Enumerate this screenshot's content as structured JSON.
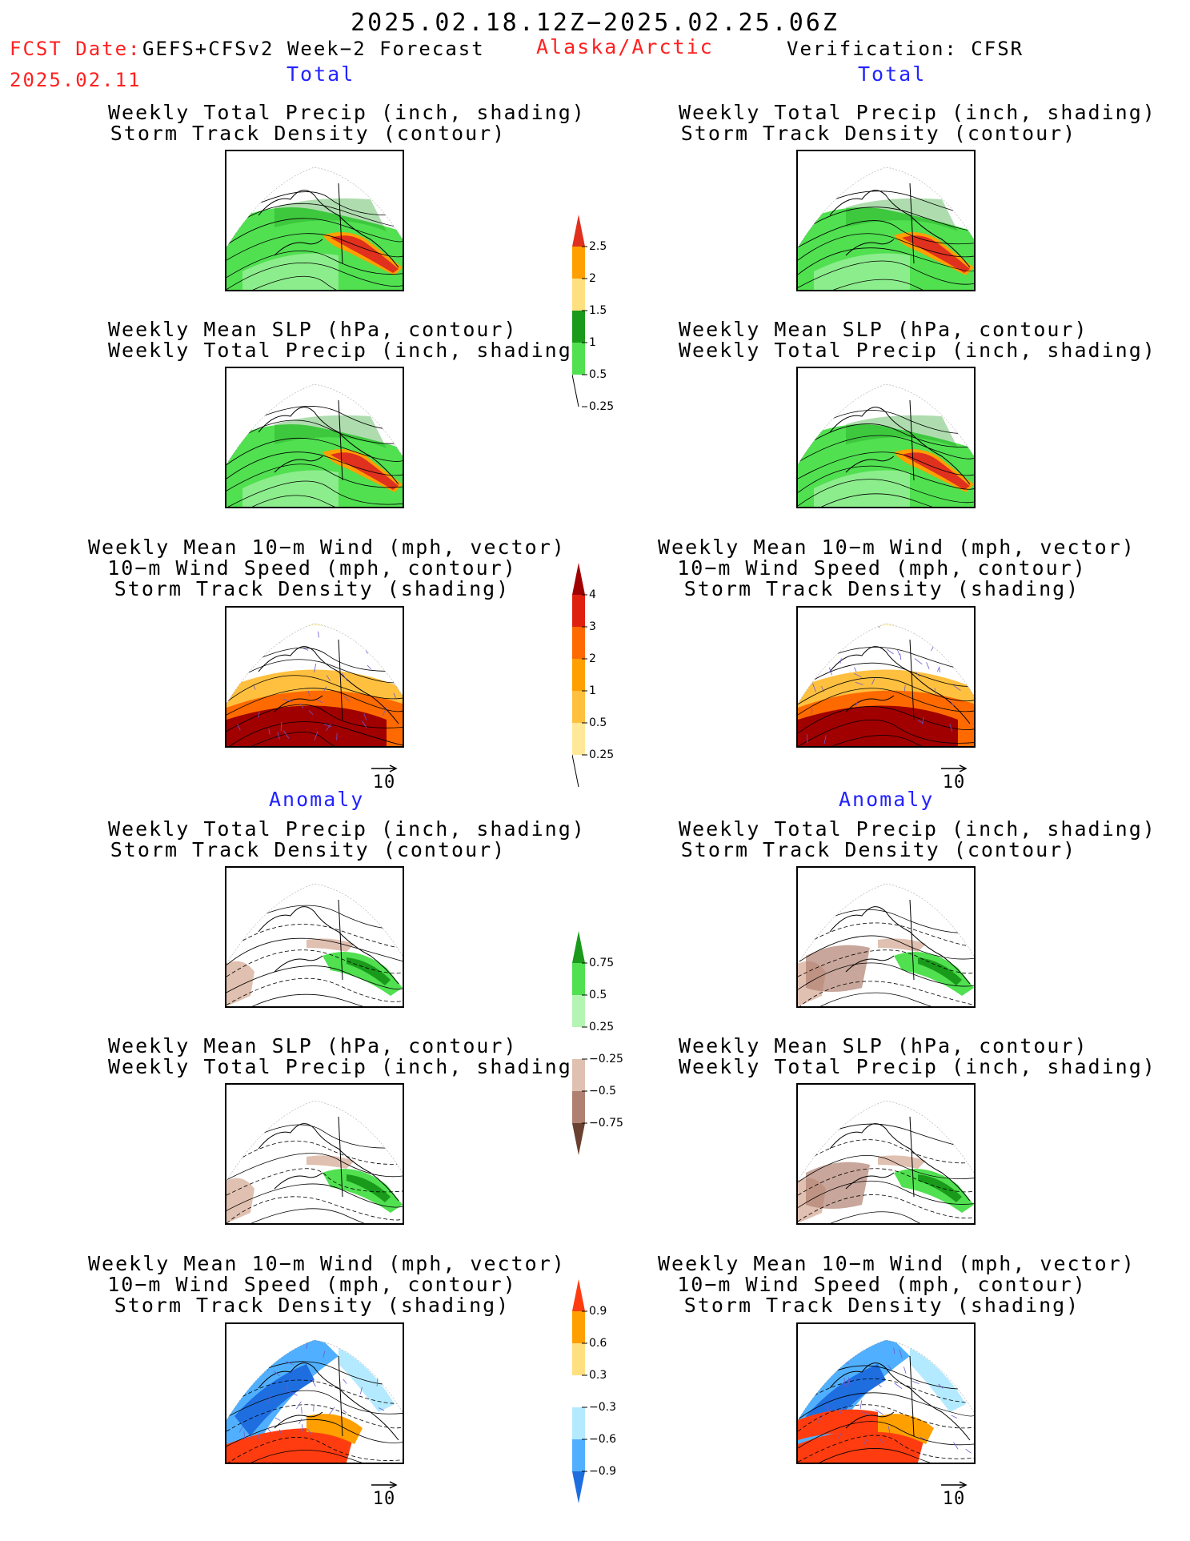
{
  "header": {
    "title": "2025.02.18.12Z−2025.02.25.06Z",
    "fcst_label": "FCST Date:",
    "fcst_model": "GEFS+CFSv2 Week−2 Forecast",
    "fcst_date": "2025.02.11",
    "region": "Alaska/Arctic",
    "verification": "Verification: CFSR"
  },
  "sections": {
    "total": "Total",
    "anomaly": "Anomaly"
  },
  "panels": {
    "precip_storm": [
      "Weekly Total Precip (inch, shading)",
      "Storm Track Density (contour)"
    ],
    "slp_precip": [
      "Weekly Mean SLP (hPa, contour)",
      "Weekly Total Precip (inch, shading)"
    ],
    "wind_storm": [
      "Weekly Mean 10−m Wind (mph, vector)",
      "10−m Wind Speed (mph, contour)",
      "Storm Track Density (shading)"
    ]
  },
  "vector_ref": "10",
  "colorbars": {
    "precip_total": {
      "labels": [
        "2.5",
        "2",
        "1.5",
        "1",
        "0.5",
        "0.25"
      ],
      "colors": [
        "#e0301e",
        "#ff9f00",
        "#ffe080",
        "#1a9a1a",
        "#50e050",
        "#b4f5b4"
      ]
    },
    "storm_total": {
      "labels": [
        "4",
        "3",
        "2",
        "1",
        "0.5",
        "0.25"
      ],
      "colors": [
        "#a00000",
        "#e0200e",
        "#ff6a00",
        "#ff9f00",
        "#ffc040",
        "#ffe898",
        "#fff8c8"
      ]
    },
    "precip_anom": {
      "labels": [
        "0.75",
        "0.5",
        "0.25",
        "−0.25",
        "−0.5",
        "−0.75"
      ],
      "colors": [
        "#1a9a1a",
        "#50e050",
        "#b4f5b4",
        "#ffffff",
        "#e0c0b0",
        "#b08070",
        "#6a4030"
      ]
    },
    "storm_anom": {
      "labels": [
        "0.9",
        "0.6",
        "0.3",
        "−0.3",
        "−0.6",
        "−0.9"
      ],
      "colors": [
        "#ff3c10",
        "#ff9f00",
        "#ffe080",
        "#ffffff",
        "#b4eaff",
        "#50b0ff",
        "#1e6ee0"
      ]
    }
  }
}
